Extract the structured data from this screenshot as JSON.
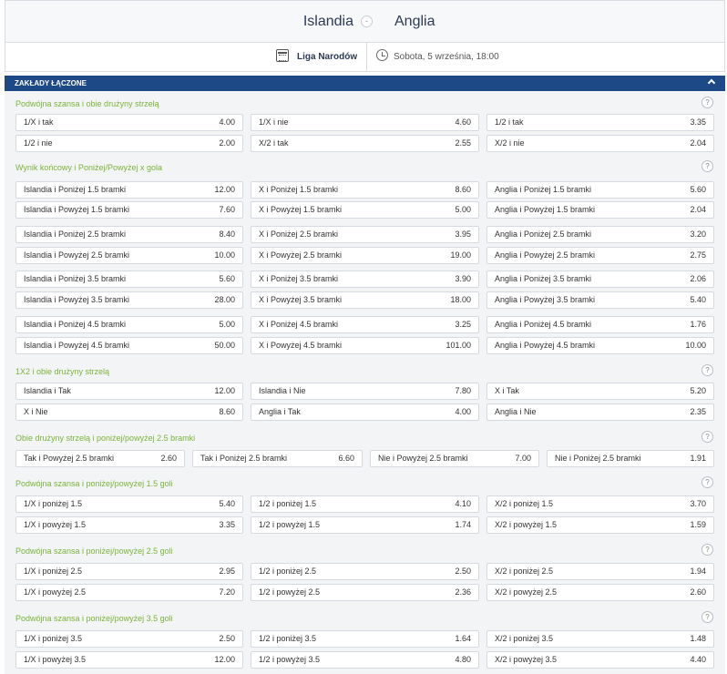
{
  "match": {
    "home_team": "Islandia",
    "vs_symbol": "-",
    "away_team": "Anglia",
    "league": "Liga Narodów",
    "datetime": "Sobota, 5 września, 18:00"
  },
  "section": {
    "title": "ZAKŁADY ŁĄCZONE"
  },
  "help_symbol": "?",
  "groups": [
    {
      "title": "Podwójna szansa i obie drużyny strzelą",
      "cols": 3,
      "rows": [
        [
          {
            "label": "1/X i tak",
            "odd": "4.00"
          },
          {
            "label": "1/X i nie",
            "odd": "4.60"
          },
          {
            "label": "1/2 i tak",
            "odd": "3.35"
          }
        ],
        [
          {
            "label": "1/2 i nie",
            "odd": "2.00"
          },
          {
            "label": "X/2 i tak",
            "odd": "2.55"
          },
          {
            "label": "X/2 i nie",
            "odd": "2.04"
          }
        ]
      ]
    },
    {
      "title": "Wynik końcowy i Poniżej/Powyżej x gola",
      "cols": 3,
      "rows": [
        [
          {
            "label": "Islandia i Poniżej 1.5 bramki",
            "odd": "12.00"
          },
          {
            "label": "X i Poniżej 1.5 bramki",
            "odd": "8.60"
          },
          {
            "label": "Anglia i Poniżej 1.5 bramki",
            "odd": "5.60"
          }
        ],
        [
          {
            "label": "Islandia i Powyżej 1.5 bramki",
            "odd": "7.60"
          },
          {
            "label": "X i Powyżej 1.5 bramki",
            "odd": "5.00"
          },
          {
            "label": "Anglia i Powyżej 1.5 bramki",
            "odd": "2.04"
          }
        ],
        [
          {
            "label": "Islandia i Poniżej 2.5 bramki",
            "odd": "8.40"
          },
          {
            "label": "X i Poniżej 2.5 bramki",
            "odd": "3.95"
          },
          {
            "label": "Anglia i Poniżej 2.5 bramki",
            "odd": "3.20"
          }
        ],
        [
          {
            "label": "Islandia i Powyżej 2.5 bramki",
            "odd": "10.00"
          },
          {
            "label": "X i Powyżej 2.5 bramki",
            "odd": "19.00"
          },
          {
            "label": "Anglia i Powyżej 2.5 bramki",
            "odd": "2.75"
          }
        ],
        [
          {
            "label": "Islandia i Poniżej 3.5 bramki",
            "odd": "5.60"
          },
          {
            "label": "X i Poniżej 3.5 bramki",
            "odd": "3.90"
          },
          {
            "label": "Anglia i Poniżej 3.5 bramki",
            "odd": "2.06"
          }
        ],
        [
          {
            "label": "Islandia i Powyżej 3.5 bramki",
            "odd": "28.00"
          },
          {
            "label": "X i Powyżej 3.5 bramki",
            "odd": "18.00"
          },
          {
            "label": "Anglia i Powyżej 3.5 bramki",
            "odd": "5.40"
          }
        ],
        [
          {
            "label": "Islandia i Poniżej 4.5 bramki",
            "odd": "5.00"
          },
          {
            "label": "X i Poniżej 4.5 bramki",
            "odd": "3.25"
          },
          {
            "label": "Anglia i Poniżej 4.5 bramki",
            "odd": "1.76"
          }
        ],
        [
          {
            "label": "Islandia i Powyżej 4.5 bramki",
            "odd": "50.00"
          },
          {
            "label": "X i Powyżej 4.5 bramki",
            "odd": "101.00"
          },
          {
            "label": "Anglia i Powyżej 4.5 bramki",
            "odd": "10.00"
          }
        ]
      ]
    },
    {
      "title": "1X2 i obie drużyny strzelą",
      "cols": 3,
      "rows": [
        [
          {
            "label": "Islandia i Tak",
            "odd": "12.00"
          },
          {
            "label": "Islandia i Nie",
            "odd": "7.80"
          },
          {
            "label": "X i Tak",
            "odd": "5.20"
          }
        ],
        [
          {
            "label": "X i Nie",
            "odd": "8.60"
          },
          {
            "label": "Anglia i Tak",
            "odd": "4.00"
          },
          {
            "label": "Anglia i Nie",
            "odd": "2.35"
          }
        ]
      ]
    },
    {
      "title": "Obie drużyny strzelą i poniżej/powyżej 2.5 bramki",
      "cols": 4,
      "rows": [
        [
          {
            "label": "Tak i Powyżej 2.5 bramki",
            "odd": "2.60"
          },
          {
            "label": "Tak i Poniżej 2.5 bramki",
            "odd": "6.60"
          },
          {
            "label": "Nie i Powyżej 2.5 bramki",
            "odd": "7.00"
          },
          {
            "label": "Nie i Poniżej 2.5 bramki",
            "odd": "1.91"
          }
        ]
      ]
    },
    {
      "title": "Podwójna szansa i poniżej/powyżej 1.5 goli",
      "cols": 3,
      "rows": [
        [
          {
            "label": "1/X i poniżej 1.5",
            "odd": "5.40"
          },
          {
            "label": "1/2 i poniżej 1.5",
            "odd": "4.10"
          },
          {
            "label": "X/2 i poniżej 1.5",
            "odd": "3.70"
          }
        ],
        [
          {
            "label": "1/X i powyżej 1.5",
            "odd": "3.35"
          },
          {
            "label": "1/2 i powyżej 1.5",
            "odd": "1.74"
          },
          {
            "label": "X/2 i powyżej 1.5",
            "odd": "1.59"
          }
        ]
      ]
    },
    {
      "title": "Podwójna szansa i poniżej/powyżej 2.5 goli",
      "cols": 3,
      "rows": [
        [
          {
            "label": "1/X i poniżej 2.5",
            "odd": "2.95"
          },
          {
            "label": "1/2 i poniżej 2.5",
            "odd": "2.50"
          },
          {
            "label": "X/2 i poniżej 2.5",
            "odd": "1.94"
          }
        ],
        [
          {
            "label": "1/X i powyżej 2.5",
            "odd": "7.20"
          },
          {
            "label": "1/2 i powyżej 2.5",
            "odd": "2.36"
          },
          {
            "label": "X/2 i powyżej 2.5",
            "odd": "2.60"
          }
        ]
      ]
    },
    {
      "title": "Podwójna szansa i poniżej/powyżej 3.5 goli",
      "cols": 3,
      "rows": [
        [
          {
            "label": "1/X i poniżej 3.5",
            "odd": "2.50"
          },
          {
            "label": "1/2 i poniżej 3.5",
            "odd": "1.64"
          },
          {
            "label": "X/2 i poniżej 3.5",
            "odd": "1.48"
          }
        ],
        [
          {
            "label": "1/X i powyżej 3.5",
            "odd": "12.00"
          },
          {
            "label": "1/2 i powyżej 3.5",
            "odd": "4.80"
          },
          {
            "label": "X/2 i powyżej 3.5",
            "odd": "4.40"
          }
        ]
      ]
    }
  ]
}
